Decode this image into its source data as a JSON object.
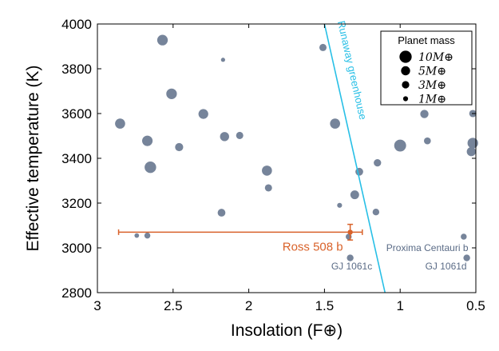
{
  "chart_data": {
    "type": "scatter",
    "xlabel": "Insolation (F⊕)",
    "ylabel": "Effective temperature (K)",
    "xlim": [
      3,
      0.5
    ],
    "ylim": [
      2800,
      4000
    ],
    "x_inverted": true,
    "xticks": [
      3,
      2.5,
      2,
      1.5,
      1,
      0.5
    ],
    "xtick_labels": [
      "3",
      "2.5",
      "2",
      "1.5",
      "1",
      "0.5"
    ],
    "yticks": [
      2800,
      3000,
      3200,
      3400,
      3600,
      3800,
      4000
    ],
    "ytick_labels": [
      "2800",
      "3000",
      "3200",
      "3400",
      "3600",
      "3800",
      "4000"
    ],
    "grid": false,
    "colors": {
      "planets": "#76849a",
      "highlight": "#d9622a",
      "runaway": "#27bfe6",
      "annotation": "#5a6b86"
    },
    "series": [
      {
        "points": [
          {
            "x": 2.57,
            "y": 3928,
            "mass": 7.2
          },
          {
            "x": 2.85,
            "y": 3555,
            "mass": 6.4
          },
          {
            "x": 2.67,
            "y": 3478,
            "mass": 7.0
          },
          {
            "x": 2.65,
            "y": 3360,
            "mass": 8.8
          },
          {
            "x": 2.51,
            "y": 3688,
            "mass": 7.2
          },
          {
            "x": 2.46,
            "y": 3450,
            "mass": 3.8
          },
          {
            "x": 2.3,
            "y": 3598,
            "mass": 6.0
          },
          {
            "x": 2.17,
            "y": 3840,
            "mass": 0.6
          },
          {
            "x": 2.16,
            "y": 3497,
            "mass": 5.0
          },
          {
            "x": 2.06,
            "y": 3502,
            "mass": 2.8
          },
          {
            "x": 2.18,
            "y": 3157,
            "mass": 3.4
          },
          {
            "x": 1.88,
            "y": 3345,
            "mass": 6.4
          },
          {
            "x": 1.87,
            "y": 3268,
            "mass": 2.8
          },
          {
            "x": 1.51,
            "y": 3895,
            "mass": 2.8
          },
          {
            "x": 1.43,
            "y": 3555,
            "mass": 6.4
          },
          {
            "x": 1.3,
            "y": 3237,
            "mass": 4.5
          },
          {
            "x": 1.4,
            "y": 3190,
            "mass": 1.0
          },
          {
            "x": 1.27,
            "y": 3340,
            "mass": 3.4
          },
          {
            "x": 1.16,
            "y": 3160,
            "mass": 2.3
          },
          {
            "x": 1.15,
            "y": 3380,
            "mass": 3.0
          },
          {
            "x": 1.0,
            "y": 3457,
            "mass": 9.5
          },
          {
            "x": 0.84,
            "y": 3598,
            "mass": 4.0
          },
          {
            "x": 0.82,
            "y": 3478,
            "mass": 2.5
          },
          {
            "x": 0.52,
            "y": 3468,
            "mass": 7.2
          },
          {
            "x": 0.53,
            "y": 3430,
            "mass": 5.0
          },
          {
            "x": 0.52,
            "y": 3600,
            "mass": 2.8
          },
          {
            "x": 2.67,
            "y": 3055,
            "mass": 1.7
          },
          {
            "x": 2.74,
            "y": 3055,
            "mass": 0.8
          },
          {
            "x": 1.34,
            "y": 3050,
            "mass": 1.7
          },
          {
            "x": 0.58,
            "y": 3050,
            "mass": 1.7
          },
          {
            "x": 0.56,
            "y": 2955,
            "mass": 2.3
          },
          {
            "x": 1.33,
            "y": 2955,
            "mass": 2.3
          }
        ]
      }
    ],
    "highlight": {
      "label": "Ross 508 b",
      "x": 1.33,
      "y": 3070,
      "x_err": [
        1.25,
        2.86
      ],
      "y_err": [
        3035,
        3105
      ]
    },
    "runaway_line": {
      "label": "Runaway greenhouse",
      "points": [
        [
          1.5,
          4000
        ],
        [
          1.1,
          2800
        ]
      ]
    },
    "annotations": [
      {
        "text": "Proxima Centauri b",
        "x": 0.55,
        "y": 3000,
        "anchor": "end"
      },
      {
        "text": "GJ 1061c",
        "x": 1.32,
        "y": 2918,
        "anchor": "middle"
      },
      {
        "text": "GJ 1061d",
        "x": 0.56,
        "y": 2918,
        "anchor": "end"
      }
    ],
    "legend": {
      "title": "Planet mass",
      "placement": "top-right",
      "entries": [
        {
          "mass": 10,
          "label": "10M⊕"
        },
        {
          "mass": 5,
          "label": "5M⊕"
        },
        {
          "mass": 3,
          "label": "3M⊕"
        },
        {
          "mass": 1,
          "label": "1M⊕"
        }
      ]
    }
  }
}
